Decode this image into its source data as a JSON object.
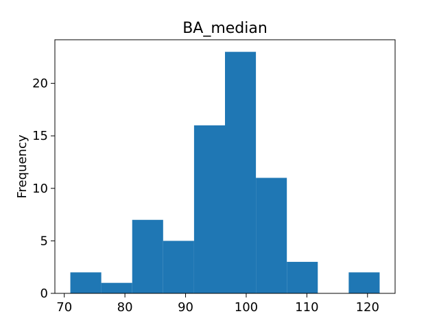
{
  "chart_data": {
    "type": "bar",
    "title": "BA_median",
    "xlabel": "",
    "ylabel": "Frequency",
    "bin_edges": [
      71.0,
      76.1,
      81.2,
      86.3,
      91.4,
      96.5,
      101.6,
      106.7,
      111.8,
      116.9,
      122.0
    ],
    "values": [
      2,
      1,
      7,
      5,
      16,
      23,
      11,
      3,
      0,
      2
    ],
    "xlim": [
      68.45,
      124.55
    ],
    "ylim": [
      0,
      24.15
    ],
    "xticks": [
      70,
      80,
      90,
      100,
      110,
      120
    ],
    "yticks": [
      0,
      5,
      10,
      15,
      20
    ],
    "bar_color": "#1f77b4",
    "grid": false,
    "legend": false
  }
}
